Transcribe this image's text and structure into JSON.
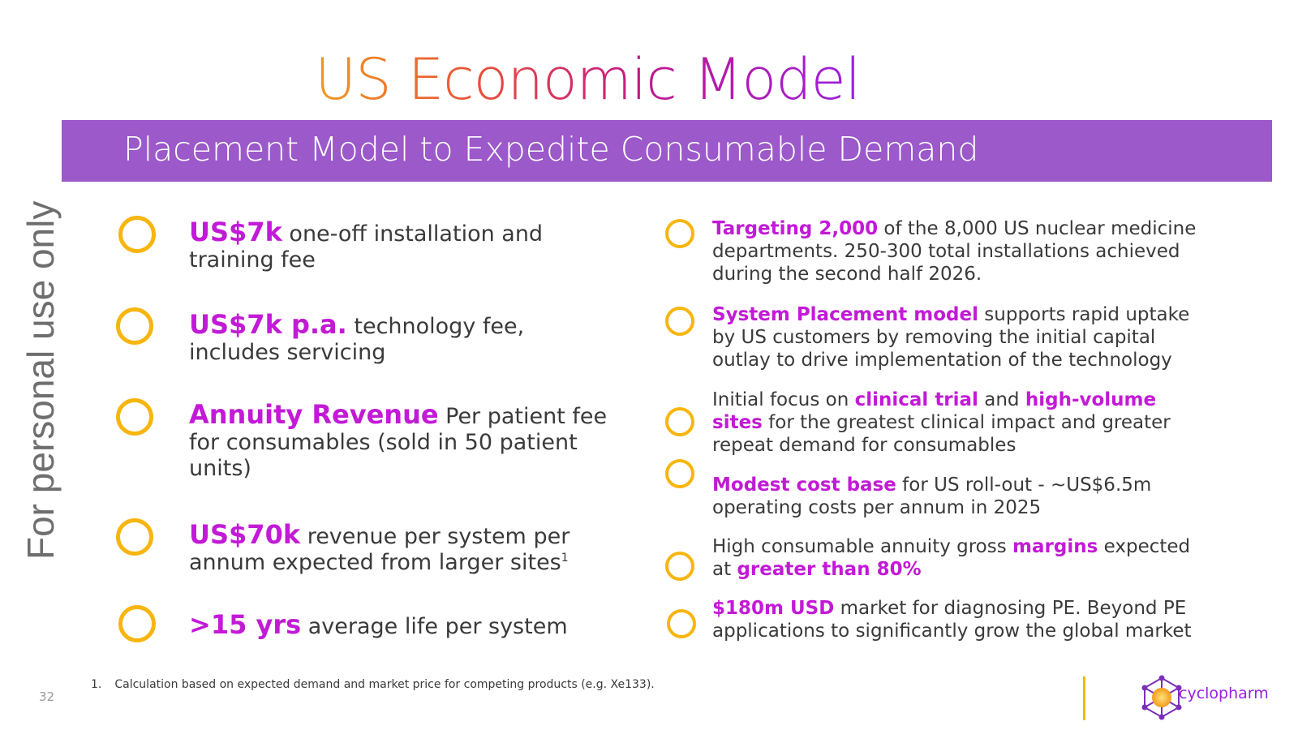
{
  "title": "US Economic Model",
  "banner": "Placement Model to Expedite Consumable Demand",
  "watermark": "For personal use only",
  "left_items": [
    {
      "highlight": "US$7k",
      "text": " one-off installation and training fee",
      "sup": ""
    },
    {
      "highlight": "US$7k p.a.",
      "text": " technology fee, includes servicing",
      "sup": ""
    },
    {
      "highlight": "Annuity Revenue",
      "text": " Per patient fee for consumables (sold in 50 patient units)",
      "sup": ""
    },
    {
      "highlight": "US$70k",
      "text": " revenue per system per annum expected from larger sites",
      "sup": "1"
    },
    {
      "highlight": ">15 yrs",
      "text": " average life per system",
      "sup": ""
    }
  ],
  "right_items": [
    {
      "p1": "",
      "h1": "Targeting 2,000",
      "p2": " of the 8,000 US nuclear medicine departments. 250-300 total installations achieved during the second half 2026.",
      "h2": "",
      "p3": ""
    },
    {
      "p1": "",
      "h1": "System Placement model",
      "p2": " supports rapid uptake by US customers by removing the initial capital outlay to drive implementation of the technology",
      "h2": "",
      "p3": ""
    },
    {
      "p1": "Initial focus on ",
      "h1": "clinical trial",
      "p2": " and ",
      "h2": "high-volume sites",
      "p3": " for the greatest clinical impact and greater repeat demand for consumables"
    },
    {
      "p1": "",
      "h1": "Modest cost base",
      "p2": " for US roll-out - ~US$6.5m operating costs per annum in 2025",
      "h2": "",
      "p3": ""
    },
    {
      "p1": "High consumable annuity gross ",
      "h1": "margins",
      "p2": " expected at ",
      "h2": "greater than 80%",
      "p3": ""
    },
    {
      "p1": "",
      "h1": "$180m USD",
      "p2": " market for diagnosing PE. Beyond PE applications to significantly grow the global market",
      "h2": "",
      "p3": ""
    }
  ],
  "footnote": {
    "number": "1.",
    "text": "Calculation based on expected demand and market price for competing products (e.g. Xe133)."
  },
  "page_number": "32",
  "logo": {
    "text": "cyclopharm",
    "icon": "cyclopharm-logo-icon"
  },
  "colors": {
    "accent": "#c21ad6",
    "banner": "#9b59c9",
    "ring": "#f7b50f",
    "brand": "#9b1fe0"
  }
}
